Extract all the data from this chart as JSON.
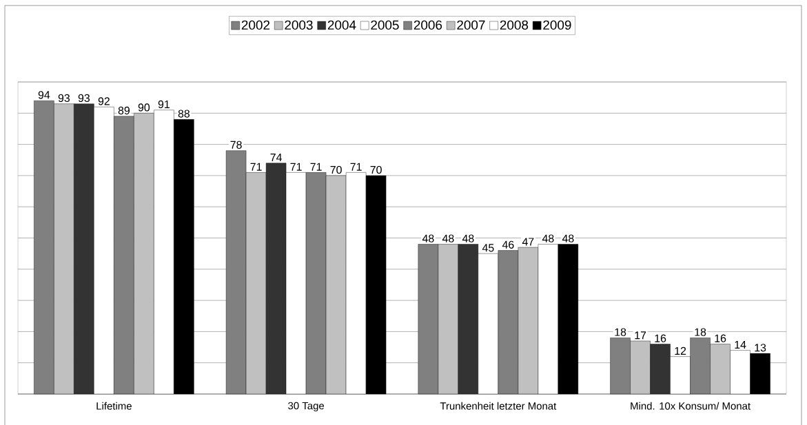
{
  "chart_data": {
    "type": "bar",
    "categories": [
      "Lifetime",
      "30 Tage",
      "Trunkenheit letzter Monat",
      "Mind. 10x Konsum/ Monat"
    ],
    "series": [
      {
        "name": "2002",
        "color": "#808080",
        "values": [
          94,
          78,
          48,
          18
        ]
      },
      {
        "name": "2003",
        "color": "#c0c0c0",
        "values": [
          93,
          71,
          48,
          17
        ]
      },
      {
        "name": "2004",
        "color": "#333333",
        "values": [
          93,
          74,
          48,
          16
        ]
      },
      {
        "name": "2005",
        "color": "#ffffff",
        "values": [
          92,
          71,
          45,
          12
        ]
      },
      {
        "name": "2006",
        "color": "#808080",
        "values": [
          89,
          71,
          46,
          18
        ]
      },
      {
        "name": "2007",
        "color": "#c0c0c0",
        "values": [
          90,
          70,
          47,
          16
        ]
      },
      {
        "name": "2008",
        "color": "#ffffff",
        "values": [
          91,
          71,
          48,
          14
        ]
      },
      {
        "name": "2009",
        "color": "#000000",
        "values": [
          88,
          70,
          48,
          13
        ]
      }
    ],
    "ylim": [
      0,
      100
    ],
    "grid": "y",
    "legend": "top",
    "data_labels": true,
    "tick_labels": "x"
  }
}
